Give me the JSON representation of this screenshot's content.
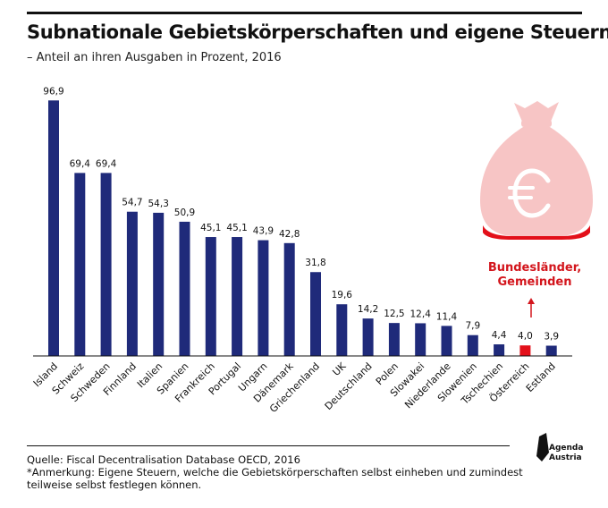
{
  "header": {
    "title": "Subnationale Gebietskörperschaften und eigene Steuern*",
    "subtitle": "– Anteil an ihren Ausgaben in Prozent, 2016"
  },
  "chart_data": {
    "type": "bar",
    "categories": [
      "Island",
      "Schweiz",
      "Schweden",
      "Finnland",
      "Italien",
      "Spanien",
      "Frankreich",
      "Portugal",
      "Ungarn",
      "Dänemark",
      "Griechenland",
      "UK",
      "Deutschland",
      "Polen",
      "Slowakei",
      "Niederlande",
      "Slowenien",
      "Tschechien",
      "Österreich",
      "Estland"
    ],
    "values": [
      96.9,
      69.4,
      69.4,
      54.7,
      54.3,
      50.9,
      45.1,
      45.1,
      43.9,
      42.8,
      31.8,
      19.6,
      14.2,
      12.5,
      12.4,
      11.4,
      7.9,
      4.4,
      4.0,
      3.9
    ],
    "value_labels": [
      "96,9",
      "69,4",
      "69,4",
      "54,7",
      "54,3",
      "50,9",
      "45,1",
      "45,1",
      "43,9",
      "42,8",
      "31,8",
      "19,6",
      "14,2",
      "12,5",
      "12,4",
      "11,4",
      "7,9",
      "4,4",
      "4,0",
      "3,9"
    ],
    "highlight_category": "Österreich",
    "ylim": [
      0,
      100
    ],
    "grid": false,
    "colors": {
      "bar": "#1f2a7a",
      "highlight": "#e3101a"
    },
    "annotation": {
      "lines": [
        "Bundesländer,",
        "Gemeinden"
      ],
      "icon": "money-bag-euro-icon",
      "arrow": "up-arrow-icon",
      "color": "#d3151c",
      "bag_color": "#f7c5c5",
      "bag_base_color": "#e3101a"
    }
  },
  "footer": {
    "source": "Quelle: Fiscal Decentralisation Database OECD, 2016",
    "note": "*Anmerkung: Eigene Steuern, welche die Gebietskörperschaften selbst einheben und zumindest teilweise selbst festlegen können.",
    "logo": {
      "icon": "agenda-austria-logo-icon",
      "line1": "Agenda",
      "line2": "Austria"
    }
  }
}
